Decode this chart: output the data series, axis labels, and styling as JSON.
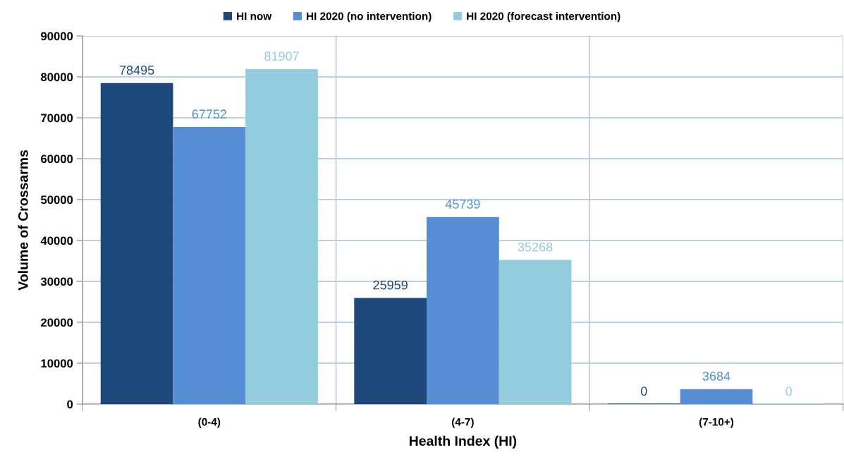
{
  "chart_data": {
    "type": "bar",
    "categories": [
      "(0-4)",
      "(4-7)",
      "(7-10+)"
    ],
    "series": [
      {
        "name": "HI now",
        "color": "#1f497d",
        "values": [
          78495,
          25959,
          0
        ]
      },
      {
        "name": "HI 2020 (no intervention)",
        "color": "#558ed5",
        "values": [
          67752,
          45739,
          3684
        ]
      },
      {
        "name": "HI 2020 (forecast intervention)",
        "color": "#93cddd",
        "values": [
          81907,
          35268,
          0
        ]
      }
    ],
    "xlabel": "Health Index (HI)",
    "ylabel": "Volume of Crossarms",
    "ylim": [
      0,
      90000
    ],
    "yticks": [
      0,
      10000,
      20000,
      30000,
      40000,
      50000,
      60000,
      70000,
      80000,
      90000
    ],
    "grid": true,
    "legend": "top",
    "data_labels": true
  }
}
